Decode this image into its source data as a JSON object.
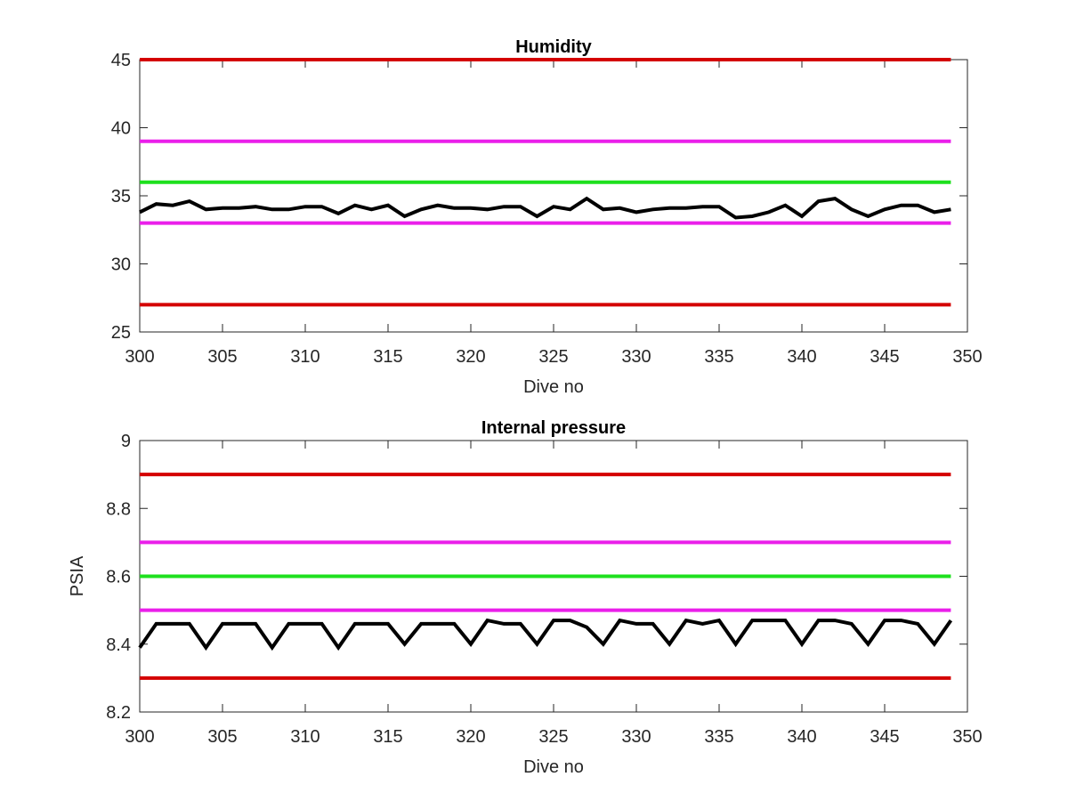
{
  "chart_data": [
    {
      "type": "line",
      "title": "Humidity",
      "xlabel": "Dive no",
      "ylabel": "",
      "xlim": [
        300,
        350
      ],
      "ylim": [
        25,
        45
      ],
      "xticks": [
        300,
        305,
        310,
        315,
        320,
        325,
        330,
        335,
        340,
        345,
        350
      ],
      "yticks": [
        25,
        30,
        35,
        40,
        45
      ],
      "x_range": [
        300,
        349
      ],
      "grid": false,
      "thresholds": [
        {
          "value": 45,
          "color": "#d40000"
        },
        {
          "value": 39,
          "color": "#ea1fea"
        },
        {
          "value": 36,
          "color": "#1ee01e"
        },
        {
          "value": 33,
          "color": "#ea1fea"
        },
        {
          "value": 27,
          "color": "#d40000"
        }
      ],
      "series": [
        {
          "color": "#000000",
          "x": [
            300,
            301,
            302,
            303,
            304,
            305,
            306,
            307,
            308,
            309,
            310,
            311,
            312,
            313,
            314,
            315,
            316,
            317,
            318,
            319,
            320,
            321,
            322,
            323,
            324,
            325,
            326,
            327,
            328,
            329,
            330,
            331,
            332,
            333,
            334,
            335,
            336,
            337,
            338,
            339,
            340,
            341,
            342,
            343,
            344,
            345,
            346,
            347,
            348,
            349
          ],
          "values": [
            33.8,
            34.4,
            34.3,
            34.6,
            34.0,
            34.1,
            34.1,
            34.2,
            34.0,
            34.0,
            34.2,
            34.2,
            33.7,
            34.3,
            34.0,
            34.3,
            33.5,
            34.0,
            34.3,
            34.1,
            34.1,
            34.0,
            34.2,
            34.2,
            33.5,
            34.2,
            34.0,
            34.8,
            34.0,
            34.1,
            33.8,
            34.0,
            34.1,
            34.1,
            34.2,
            34.2,
            33.4,
            33.5,
            33.8,
            34.3,
            33.5,
            34.6,
            34.8,
            34.0,
            33.5,
            34.0,
            34.3,
            34.3,
            33.8,
            34.0
          ]
        }
      ]
    },
    {
      "type": "line",
      "title": "Internal pressure",
      "xlabel": "Dive no",
      "ylabel": "PSIA",
      "xlim": [
        300,
        350
      ],
      "ylim": [
        8.2,
        9.0
      ],
      "xticks": [
        300,
        305,
        310,
        315,
        320,
        325,
        330,
        335,
        340,
        345,
        350
      ],
      "yticks": [
        8.2,
        8.4,
        8.6,
        8.8,
        9.0
      ],
      "ytick_labels": [
        "8.2",
        "8.4",
        "8.6",
        "8.8",
        "9"
      ],
      "x_range": [
        300,
        349
      ],
      "grid": false,
      "thresholds": [
        {
          "value": 8.9,
          "color": "#d40000"
        },
        {
          "value": 8.7,
          "color": "#ea1fea"
        },
        {
          "value": 8.6,
          "color": "#1ee01e"
        },
        {
          "value": 8.5,
          "color": "#ea1fea"
        },
        {
          "value": 8.3,
          "color": "#d40000"
        }
      ],
      "series": [
        {
          "color": "#000000",
          "x": [
            300,
            301,
            302,
            303,
            304,
            305,
            306,
            307,
            308,
            309,
            310,
            311,
            312,
            313,
            314,
            315,
            316,
            317,
            318,
            319,
            320,
            321,
            322,
            323,
            324,
            325,
            326,
            327,
            328,
            329,
            330,
            331,
            332,
            333,
            334,
            335,
            336,
            337,
            338,
            339,
            340,
            341,
            342,
            343,
            344,
            345,
            346,
            347,
            348,
            349
          ],
          "values": [
            8.39,
            8.46,
            8.46,
            8.46,
            8.39,
            8.46,
            8.46,
            8.46,
            8.39,
            8.46,
            8.46,
            8.46,
            8.39,
            8.46,
            8.46,
            8.46,
            8.4,
            8.46,
            8.46,
            8.46,
            8.4,
            8.47,
            8.46,
            8.46,
            8.4,
            8.47,
            8.47,
            8.45,
            8.4,
            8.47,
            8.46,
            8.46,
            8.4,
            8.47,
            8.46,
            8.47,
            8.4,
            8.47,
            8.47,
            8.47,
            8.4,
            8.47,
            8.47,
            8.46,
            8.4,
            8.47,
            8.47,
            8.46,
            8.4,
            8.47
          ]
        }
      ]
    }
  ]
}
